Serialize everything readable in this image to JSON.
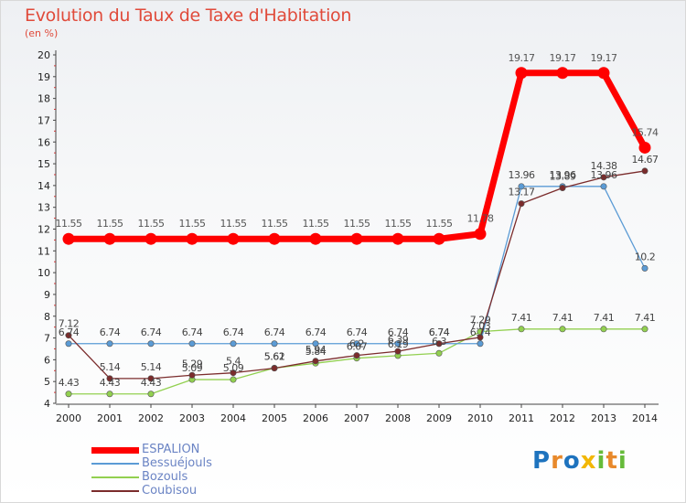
{
  "title": "Evolution du Taux de Taxe d'Habitation",
  "unit_label": "(en %)",
  "logo": {
    "text": "Proxiti",
    "letters": [
      {
        "ch": "P",
        "color": "#1e73be"
      },
      {
        "ch": "r",
        "color": "#e8892b"
      },
      {
        "ch": "o",
        "color": "#1e73be"
      },
      {
        "ch": "x",
        "color": "#f2b705"
      },
      {
        "ch": "i",
        "color": "#66bb3a"
      },
      {
        "ch": "t",
        "color": "#e8892b"
      },
      {
        "ch": "i",
        "color": "#66bb3a"
      }
    ]
  },
  "chart_data": {
    "type": "line",
    "title": "Evolution du Taux de Taxe d'Habitation",
    "ylabel": "(en %)",
    "xlabel": "",
    "x": [
      "2000",
      "2001",
      "2002",
      "2003",
      "2004",
      "2005",
      "2006",
      "2007",
      "2008",
      "2009",
      "2010",
      "2011",
      "2012",
      "2013",
      "2014"
    ],
    "ylim": [
      4,
      20
    ],
    "yticks": [
      "4",
      "5",
      "6",
      "7",
      "8",
      "9",
      "10",
      "11",
      "12",
      "13",
      "14",
      "15",
      "16",
      "17",
      "18",
      "19",
      "20"
    ],
    "grid": false,
    "legend_position": "bottom-left",
    "series": [
      {
        "name": "ESPALION",
        "color": "#ff0000",
        "values": [
          11.55,
          11.55,
          11.55,
          11.55,
          11.55,
          11.55,
          11.55,
          11.55,
          11.55,
          11.55,
          11.78,
          19.17,
          19.17,
          19.17,
          15.74
        ],
        "labels": [
          "11.55",
          "11.55",
          "11.55",
          "11.55",
          "11.55",
          "11.55",
          "11.55",
          "11.55",
          "11.55",
          "11.55",
          "11.78",
          "19.17",
          "19.17",
          "19.17",
          "15.74"
        ]
      },
      {
        "name": "Bessuéjouls",
        "color": "#5b9bd5",
        "values": [
          6.74,
          6.74,
          6.74,
          6.74,
          6.74,
          6.74,
          6.74,
          6.74,
          6.74,
          6.74,
          6.74,
          13.96,
          13.96,
          13.96,
          10.2
        ],
        "labels": [
          "6.74",
          "6.74",
          "6.74",
          "6.74",
          "6.74",
          "6.74",
          "6.74",
          "6.74",
          "6.74",
          "6.74",
          "6.74",
          "13.96",
          "13.96",
          "13.96",
          "10.2"
        ]
      },
      {
        "name": "Bozouls",
        "color": "#92d050",
        "values": [
          4.43,
          4.43,
          4.43,
          5.09,
          5.09,
          5.62,
          5.84,
          6.07,
          6.19,
          6.3,
          7.29,
          7.41,
          7.41,
          7.41,
          7.41
        ],
        "labels": [
          "4.43",
          "4.43",
          "4.43",
          "5.09",
          "5.09",
          "5.62",
          "5.84",
          "6.07",
          "6.19",
          "6.3",
          "7.29",
          "7.41",
          "7.41",
          "7.41",
          "7.41"
        ]
      },
      {
        "name": "Coubisou",
        "color": "#7b2c2c",
        "values": [
          7.12,
          5.14,
          5.14,
          5.29,
          5.4,
          5.61,
          5.94,
          6.2,
          6.39,
          6.74,
          7.03,
          13.17,
          13.89,
          14.38,
          14.67
        ],
        "labels": [
          "7.12",
          "5.14",
          "5.14",
          "5.29",
          "5.4",
          "5.61",
          "5.94",
          "6.2",
          "6.39",
          "6.74",
          "7.03",
          "13.17",
          "13.89",
          "14.38",
          "14.67"
        ]
      }
    ]
  }
}
